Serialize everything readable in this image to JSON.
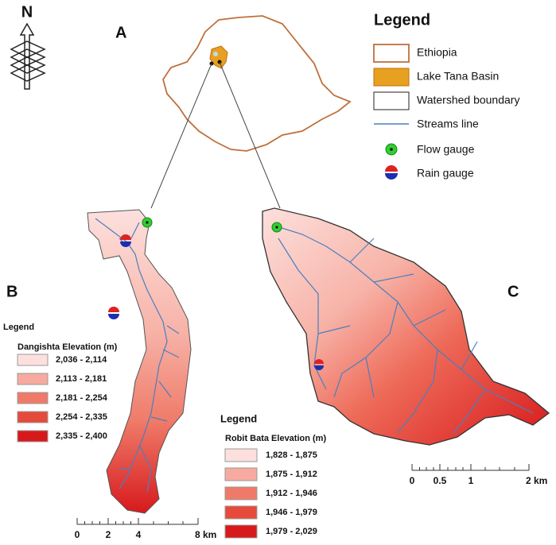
{
  "panel_labels": {
    "a": "A",
    "b": "B",
    "c": "C"
  },
  "north": "N",
  "main_legend": {
    "title": "Legend",
    "items": [
      "Ethiopia",
      "Lake Tana Basin",
      "Watershed boundary",
      "Streams line",
      "Flow gauge",
      "Rain gauge"
    ]
  },
  "legend_b": {
    "title": "Legend",
    "subtitle": "Dangishta Elevation (m)",
    "classes": [
      "2,036 - 2,114",
      "2,113 - 2,181",
      "2,181 - 2,254",
      "2,254 - 2,335",
      "2,335 - 2,400"
    ]
  },
  "legend_c": {
    "title": "Legend",
    "subtitle": "Robit Bata Elevation (m)",
    "classes": [
      "1,828 - 1,875",
      "1,875 - 1,912",
      "1,912 - 1,946",
      "1,946 - 1,979",
      "1,979 - 2,029"
    ]
  },
  "scale_b": [
    "0",
    "2",
    "4",
    "8 km"
  ],
  "scale_c": [
    "0",
    "0.5",
    "1",
    "2 km"
  ]
}
